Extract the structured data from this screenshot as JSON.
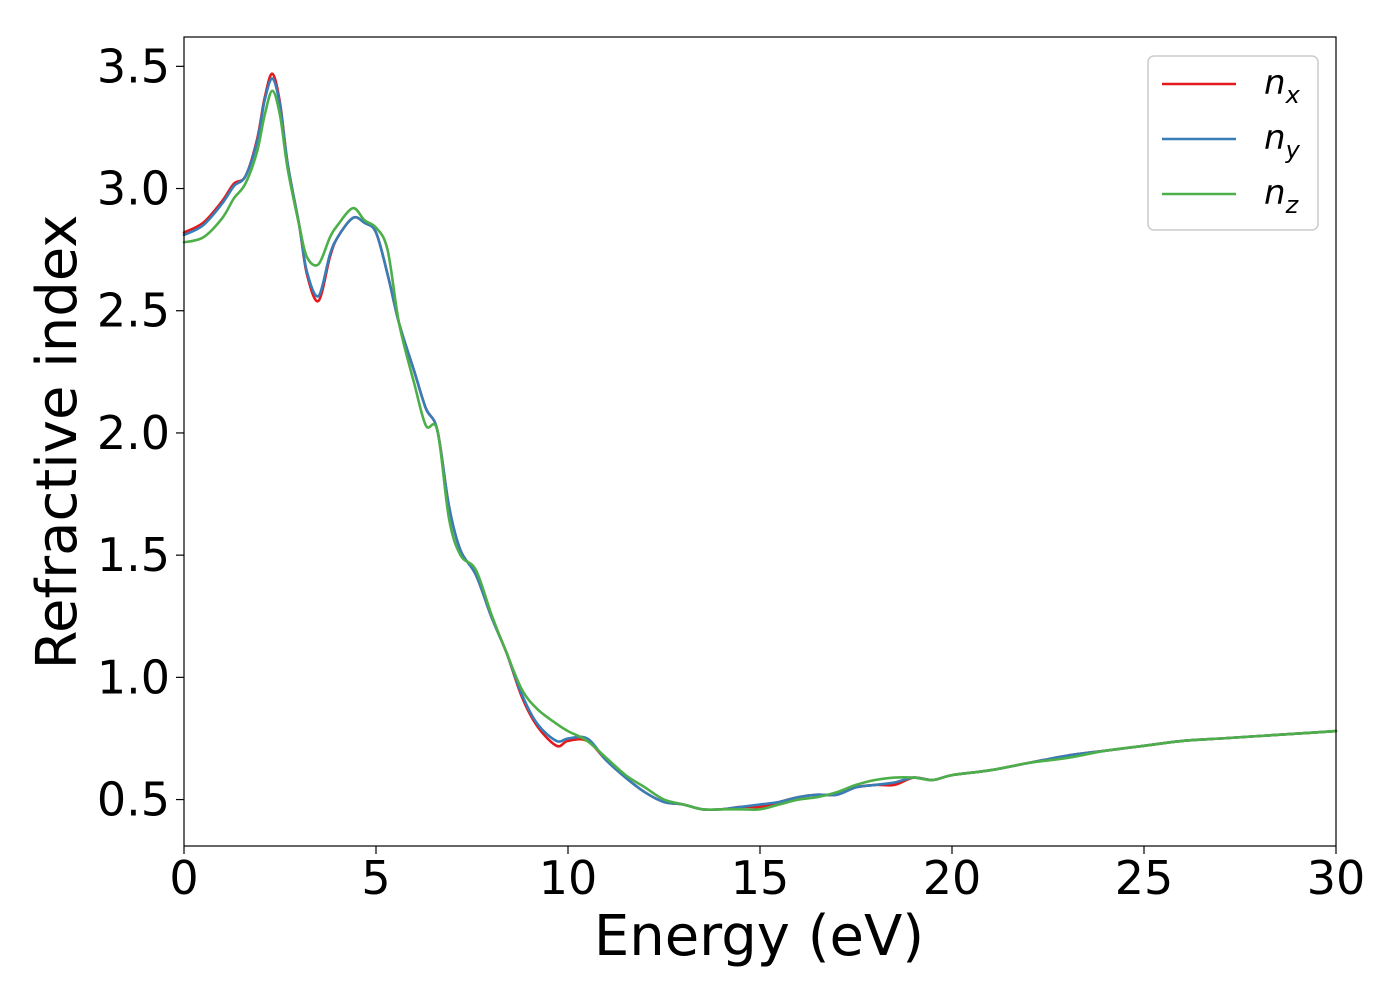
{
  "chart_data": {
    "type": "line",
    "title": "",
    "xlabel": "Energy (eV)",
    "ylabel": "Refractive index",
    "xlim": [
      0,
      30
    ],
    "ylim": [
      0.31,
      3.62
    ],
    "xticks": [
      0,
      5,
      10,
      15,
      20,
      25,
      30
    ],
    "xtick_labels": [
      "0",
      "5",
      "10",
      "15",
      "20",
      "25",
      "30"
    ],
    "yticks": [
      0.5,
      1.0,
      1.5,
      2.0,
      2.5,
      3.0,
      3.5
    ],
    "ytick_labels": [
      "0.5",
      "1.0",
      "1.5",
      "2.0",
      "2.5",
      "3.0",
      "3.5"
    ],
    "grid": false,
    "legend_position": "top-right",
    "series": [
      {
        "name": "n_x",
        "label_main": "n",
        "label_sub": "x",
        "color": "#e41a1c",
        "x": [
          0,
          0.5,
          1.0,
          1.3,
          1.6,
          1.9,
          2.1,
          2.3,
          2.5,
          2.7,
          3.0,
          3.2,
          3.5,
          3.8,
          4.0,
          4.4,
          4.7,
          5.0,
          5.3,
          5.6,
          6.0,
          6.3,
          6.6,
          6.9,
          7.2,
          7.6,
          8.0,
          8.4,
          8.8,
          9.2,
          9.7,
          10.0,
          10.5,
          11.0,
          11.5,
          12.0,
          12.5,
          13.0,
          13.5,
          14.0,
          14.5,
          15.0,
          15.5,
          16.0,
          16.5,
          17.0,
          17.5,
          18.0,
          18.5,
          19.0,
          19.5,
          20.0,
          21.0,
          22.0,
          23.0,
          24.0,
          25.0,
          26.0,
          27.0,
          28.0,
          29.0,
          30.0
        ],
        "y": [
          2.82,
          2.86,
          2.95,
          3.02,
          3.05,
          3.2,
          3.37,
          3.47,
          3.35,
          3.1,
          2.85,
          2.65,
          2.54,
          2.72,
          2.8,
          2.88,
          2.86,
          2.82,
          2.65,
          2.45,
          2.25,
          2.1,
          2.01,
          1.7,
          1.52,
          1.42,
          1.25,
          1.1,
          0.92,
          0.8,
          0.72,
          0.74,
          0.74,
          0.66,
          0.59,
          0.53,
          0.49,
          0.48,
          0.46,
          0.46,
          0.47,
          0.47,
          0.49,
          0.51,
          0.52,
          0.52,
          0.55,
          0.56,
          0.56,
          0.59,
          0.58,
          0.6,
          0.62,
          0.65,
          0.68,
          0.7,
          0.72,
          0.74,
          0.75,
          0.76,
          0.77,
          0.78
        ]
      },
      {
        "name": "n_y",
        "label_main": "n",
        "label_sub": "y",
        "color": "#377eb8",
        "x": [
          0,
          0.5,
          1.0,
          1.3,
          1.6,
          1.9,
          2.1,
          2.3,
          2.5,
          2.7,
          3.0,
          3.2,
          3.5,
          3.8,
          4.0,
          4.4,
          4.7,
          5.0,
          5.3,
          5.6,
          6.0,
          6.3,
          6.6,
          6.9,
          7.2,
          7.6,
          8.0,
          8.4,
          8.8,
          9.2,
          9.7,
          10.0,
          10.5,
          11.0,
          11.5,
          12.0,
          12.5,
          13.0,
          13.5,
          14.0,
          14.5,
          15.0,
          15.5,
          16.0,
          16.5,
          17.0,
          17.5,
          18.0,
          18.5,
          19.0,
          19.5,
          20.0,
          21.0,
          22.0,
          23.0,
          24.0,
          25.0,
          26.0,
          27.0,
          28.0,
          29.0,
          30.0
        ],
        "y": [
          2.81,
          2.85,
          2.94,
          3.01,
          3.05,
          3.19,
          3.36,
          3.45,
          3.34,
          3.1,
          2.85,
          2.66,
          2.56,
          2.73,
          2.8,
          2.88,
          2.86,
          2.82,
          2.65,
          2.45,
          2.25,
          2.1,
          2.01,
          1.7,
          1.52,
          1.42,
          1.25,
          1.1,
          0.93,
          0.81,
          0.74,
          0.75,
          0.75,
          0.66,
          0.59,
          0.53,
          0.49,
          0.48,
          0.46,
          0.46,
          0.47,
          0.48,
          0.49,
          0.51,
          0.52,
          0.52,
          0.55,
          0.56,
          0.57,
          0.59,
          0.58,
          0.6,
          0.62,
          0.65,
          0.68,
          0.7,
          0.72,
          0.74,
          0.75,
          0.76,
          0.77,
          0.78
        ]
      },
      {
        "name": "n_z",
        "label_main": "n",
        "label_sub": "z",
        "color": "#4daf4a",
        "x": [
          0,
          0.5,
          1.0,
          1.3,
          1.6,
          1.9,
          2.1,
          2.3,
          2.5,
          2.7,
          3.0,
          3.2,
          3.5,
          3.8,
          4.0,
          4.4,
          4.7,
          5.0,
          5.3,
          5.6,
          6.0,
          6.3,
          6.6,
          6.9,
          7.2,
          7.6,
          8.0,
          8.4,
          8.8,
          9.2,
          9.7,
          10.0,
          10.5,
          11.0,
          11.5,
          12.0,
          12.5,
          13.0,
          13.5,
          14.0,
          14.5,
          15.0,
          15.5,
          16.0,
          16.5,
          17.0,
          17.5,
          18.0,
          18.5,
          19.0,
          19.5,
          20.0,
          21.0,
          22.0,
          23.0,
          24.0,
          25.0,
          26.0,
          27.0,
          28.0,
          29.0,
          30.0
        ],
        "y": [
          2.78,
          2.8,
          2.88,
          2.96,
          3.02,
          3.15,
          3.3,
          3.4,
          3.3,
          3.08,
          2.85,
          2.72,
          2.69,
          2.8,
          2.85,
          2.92,
          2.87,
          2.84,
          2.75,
          2.45,
          2.2,
          2.03,
          2.01,
          1.65,
          1.5,
          1.44,
          1.26,
          1.1,
          0.95,
          0.87,
          0.81,
          0.78,
          0.74,
          0.67,
          0.6,
          0.55,
          0.5,
          0.48,
          0.46,
          0.46,
          0.46,
          0.46,
          0.48,
          0.5,
          0.51,
          0.53,
          0.56,
          0.58,
          0.59,
          0.59,
          0.58,
          0.6,
          0.62,
          0.65,
          0.67,
          0.7,
          0.72,
          0.74,
          0.75,
          0.76,
          0.77,
          0.78
        ]
      }
    ]
  }
}
